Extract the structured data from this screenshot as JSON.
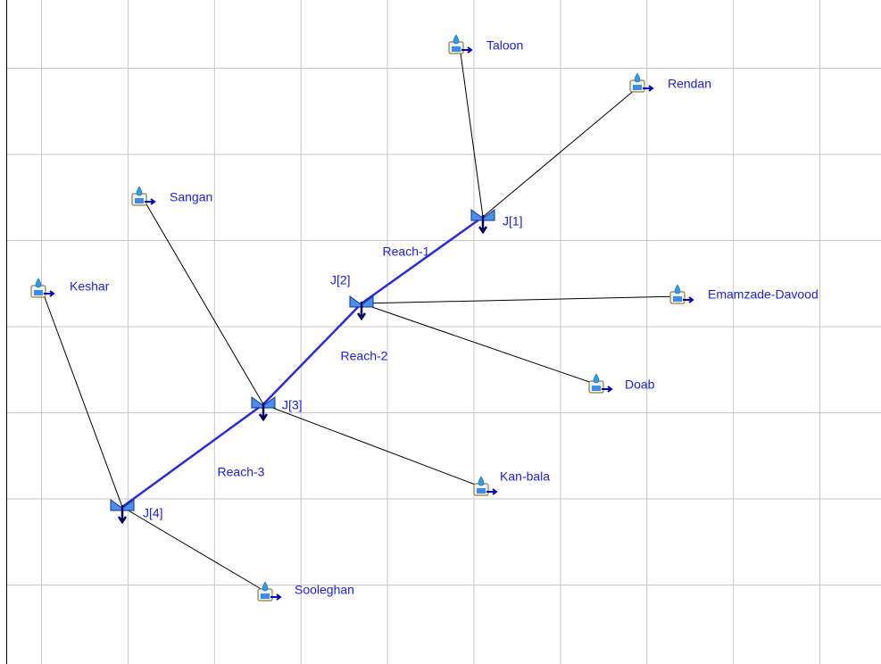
{
  "subbasins": [
    "Taloon",
    "Rendan",
    "Sangan",
    "Keshar",
    "Emamzade-Davood",
    "Doab",
    "Kan-bala",
    "Sooleghan"
  ],
  "junctions": [
    "J[1]",
    "J[2]",
    "J[3]",
    "J[4]"
  ],
  "reaches": [
    "Reach-1",
    "Reach-2",
    "Reach-3"
  ]
}
